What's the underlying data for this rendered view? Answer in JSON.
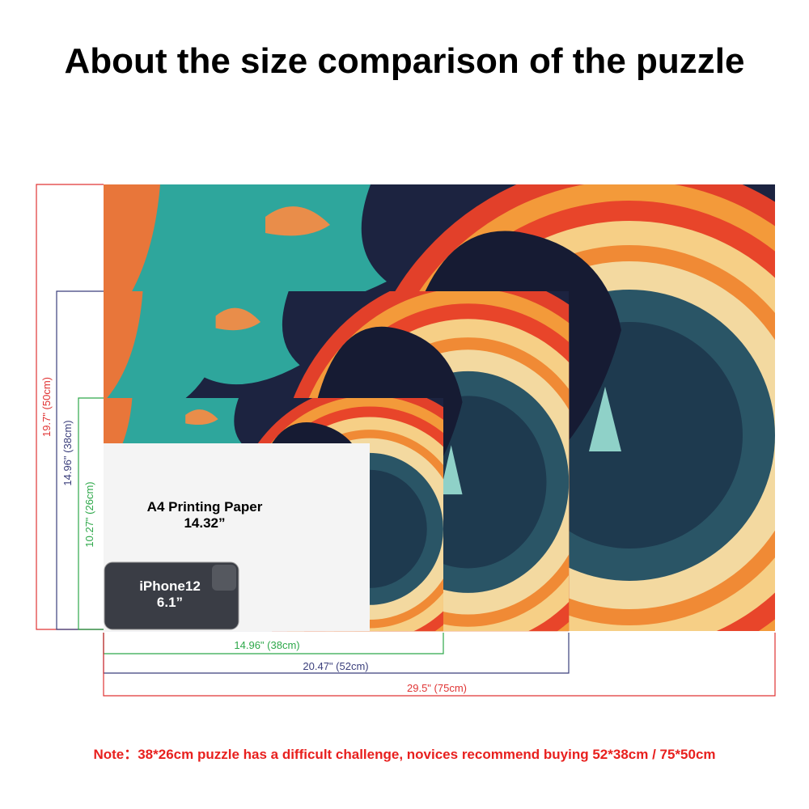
{
  "title": "About the size comparison of the puzzle",
  "heights": {
    "large": "19.7\" (50cm)",
    "medium": "14.96\" (38cm)",
    "small": "10.27\" (26cm)"
  },
  "widths": {
    "small": "14.96\" (38cm)",
    "medium": "20.47\" (52cm)",
    "large": "29.5\" (75cm)"
  },
  "paper": {
    "label": "A4 Printing Paper",
    "size": "14.32”"
  },
  "phone": {
    "label": "iPhone12",
    "size": "6.1”"
  },
  "note": "Note：38*26cm puzzle has a difficult challenge, novices recommend buying 52*38cm / 75*50cm"
}
